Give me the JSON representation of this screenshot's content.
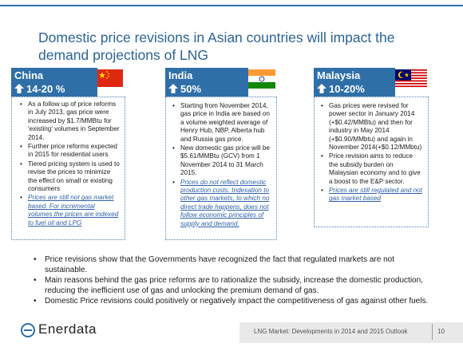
{
  "title": "Domestic price revisions in Asian countries will impact the demand projections of LNG",
  "countries": [
    {
      "name": "China",
      "change": "14-20 %",
      "bullets": [
        {
          "text": "As a follow up of price reforms in July 2013, gas price were increased by $1.7/MMBtu for 'existing' volumes in September 2014.",
          "link": false
        },
        {
          "text": "Further price reforms expected in 2015 for residential users",
          "link": false
        },
        {
          "text": "Tiered pricing system is used to revise the prices to minimize the effect on small or existing consumers",
          "link": false
        },
        {
          "text": "Prices are still not gas market based. For incremental volumes the prices are indexed to fuel oil and LPG",
          "link": true
        }
      ]
    },
    {
      "name": "India",
      "change": "50%",
      "bullets": [
        {
          "text": "Starting from November 2014, gas price in India are based on a volume weighted average of Henry Hub, NBP, Alberta hub and Russia gas price.",
          "link": false
        },
        {
          "text": "New domestic gas price will be $5.61/MMBtu (GCV) from 1 November 2014 to 31 March 2015.",
          "link": false
        },
        {
          "text": "Prices do not reflect domestic production costs. Indexation to other gas markets, to which no direct trade happens, does not follow economic principles of supply and demand.",
          "link": true
        }
      ]
    },
    {
      "name": "Malaysia",
      "change": "10-20%",
      "bullets": [
        {
          "text": "Gas prices were revised for power sector in January 2014 (+$0.42/MMBtu) and then for industry in May 2014 (+$0.90/MMbtu) and again in November 2014(+$0.12/MMbtu)",
          "link": false
        },
        {
          "text": "Price revision aims to reduce the subsidy burden on Malaysian economy and to give a boost to the E&P sector.",
          "link": false
        },
        {
          "text": "Prices are still regulated and not gas market based",
          "link": true
        }
      ]
    }
  ],
  "summary": [
    "Price revisions show that the Governments have recognized the fact that regulated markets are not sustainable.",
    "Main reasons behind the gas price reforms are to rationalize the subsidy, increase the domestic production, reducing the inefficient use of gas and unlocking the premium demand of gas.",
    "Domestic Price revisions could positively or negatively impact the competitiveness of gas against other fuels."
  ],
  "footer": {
    "logo": "Enerdata",
    "text": "LNG Market: Developments in 2014 and 2015 Outlook",
    "page": "10"
  },
  "colors": {
    "accent": "#2f6fa8",
    "title": "#2a6496",
    "link": "#2e62a8"
  }
}
